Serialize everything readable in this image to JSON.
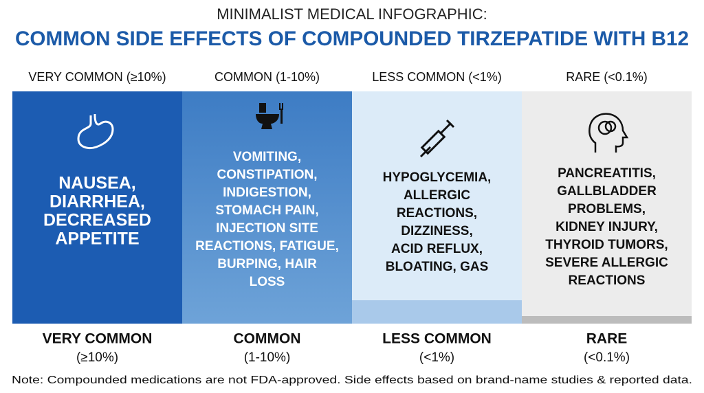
{
  "header": {
    "subtitle": "MINIMALIST MEDICAL INFOGRAPHIC:",
    "title": "COMMON SIDE EFFECTS OF COMPOUNDED TIRZEPATIDE WITH B12"
  },
  "columns": [
    {
      "heading": "VERY COMMON (≥10%)",
      "lines": [
        "NAUSEA,",
        "DIARRHEA,",
        "DECREASED",
        "APPETITE"
      ],
      "label": "VERY COMMON",
      "range": "(≥10%)"
    },
    {
      "heading": "COMMON (1-10%)",
      "lines": [
        "VOMITING,",
        "CONSTIPATION,",
        "INDIGESTION,",
        "STOMACH PAIN,",
        "INJECTION SITE",
        "REACTIONS, FATIGUE,",
        "BURPING, HAIR",
        "LOSS"
      ],
      "label": "COMMON",
      "range": "(1-10%)"
    },
    {
      "heading": "LESS COMMON (<1%)",
      "lines": [
        "HYPOGLYCEMIA,",
        "ALLERGIC",
        "REACTIONS,",
        "DIZZINESS,",
        "ACID REFLUX,",
        "BLOATING, GAS"
      ],
      "label": "LESS COMMON",
      "range": "(<1%)"
    },
    {
      "heading": "RARE (<0.1%)",
      "lines": [
        "PANCREATITIS,",
        "GALLBLADDER",
        "PROBLEMS,",
        "KIDNEY INJURY,",
        "THYROID TUMORS,",
        "SEVERE ALLERGIC",
        "REACTIONS"
      ],
      "label": "RARE",
      "range": "(<0.1%)"
    }
  ],
  "note": "Note: Compounded medications are not FDA-approved. Side effects based on brand-name studies & reported data."
}
